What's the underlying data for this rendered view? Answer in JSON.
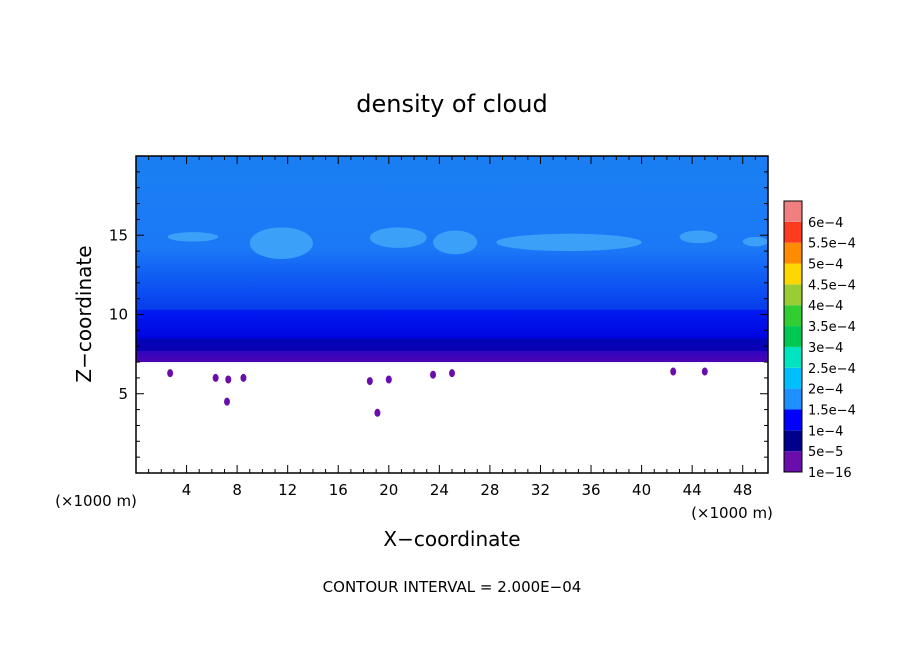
{
  "chart_data": {
    "type": "heatmap",
    "title": "density of cloud",
    "xlabel": "X−coordinate",
    "ylabel": "Z−coordinate",
    "x_unit_left": "(×1000 m)",
    "x_unit_right": "(×1000 m)",
    "xlim": [
      0,
      50
    ],
    "ylim": [
      0,
      20
    ],
    "x_ticks": [
      4,
      8,
      12,
      16,
      20,
      24,
      28,
      32,
      36,
      40,
      44,
      48
    ],
    "y_ticks": [
      5,
      10,
      15
    ],
    "contour_interval_text": "CONTOUR INTERVAL = 2.000E−04",
    "colorbar": {
      "labels": [
        "1e−16",
        "5e−5",
        "1e−4",
        "1.5e−4",
        "2e−4",
        "2.5e−4",
        "3e−4",
        "3.5e−4",
        "4e−4",
        "4.5e−4",
        "5e−4",
        "5.5e−4",
        "6e−4"
      ],
      "colors": [
        "#6a0dad",
        "#00008b",
        "#0000ff",
        "#1e90ff",
        "#00bfff",
        "#00e5c0",
        "#00c853",
        "#32cd32",
        "#9acd32",
        "#ffd700",
        "#ff8c00",
        "#ff3b1f",
        "#f08080"
      ]
    },
    "cloud_base_z": 7,
    "layers": [
      {
        "z0": 7.0,
        "z1": 7.7,
        "value": "1e−16"
      },
      {
        "z0": 7.7,
        "z1": 8.5,
        "value": "5e−5"
      },
      {
        "z0": 8.5,
        "z1": 10.3,
        "value": "1e−4"
      },
      {
        "z0": 10.3,
        "z1": 20.0,
        "value": "1.5e−4"
      }
    ],
    "high_patches": [
      {
        "x": [
          2.5,
          6.5
        ],
        "z": [
          14.6,
          15.2
        ]
      },
      {
        "x": [
          9.0,
          14.0
        ],
        "z": [
          13.5,
          15.5
        ]
      },
      {
        "x": [
          18.5,
          23.0
        ],
        "z": [
          14.2,
          15.5
        ]
      },
      {
        "x": [
          23.5,
          27.0
        ],
        "z": [
          13.8,
          15.3
        ]
      },
      {
        "x": [
          28.5,
          40.0
        ],
        "z": [
          14.0,
          15.1
        ]
      },
      {
        "x": [
          43.0,
          46.0
        ],
        "z": [
          14.5,
          15.3
        ]
      },
      {
        "x": [
          48.0,
          50.0
        ],
        "z": [
          14.3,
          14.9
        ]
      }
    ],
    "wisps": [
      {
        "x": 2.7,
        "z": 6.3
      },
      {
        "x": 6.3,
        "z": 6.0
      },
      {
        "x": 7.3,
        "z": 5.9
      },
      {
        "x": 8.5,
        "z": 6.0
      },
      {
        "x": 7.2,
        "z": 4.5
      },
      {
        "x": 18.5,
        "z": 5.8
      },
      {
        "x": 20.0,
        "z": 5.9
      },
      {
        "x": 19.1,
        "z": 3.8
      },
      {
        "x": 23.5,
        "z": 6.2
      },
      {
        "x": 25.0,
        "z": 6.3
      },
      {
        "x": 42.5,
        "z": 6.4
      },
      {
        "x": 45.0,
        "z": 6.4
      }
    ]
  }
}
